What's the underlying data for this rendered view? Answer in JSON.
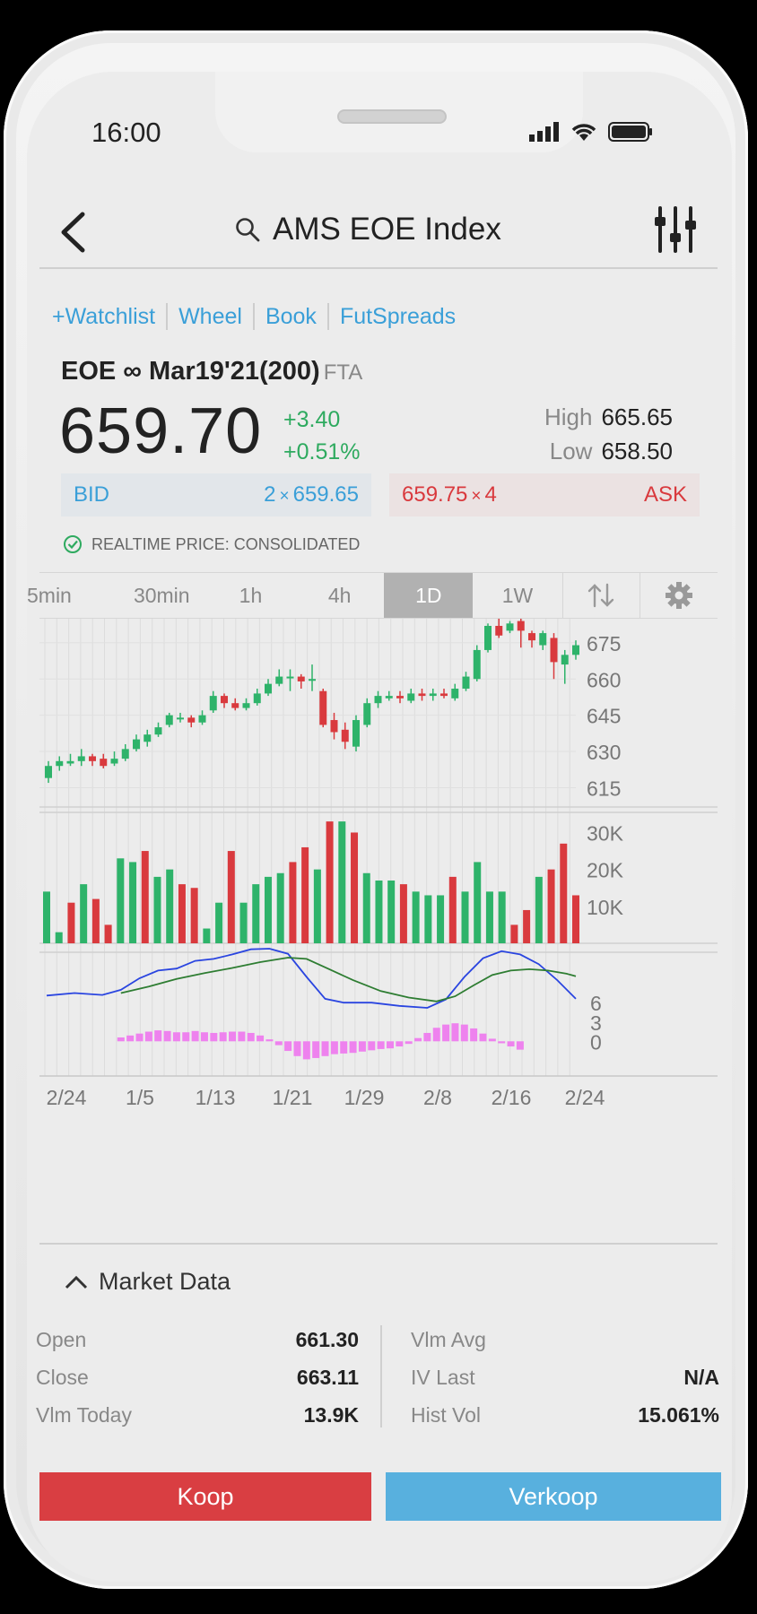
{
  "status_bar": {
    "time": "16:00"
  },
  "header": {
    "title": "AMS EOE Index"
  },
  "links": [
    "+Watchlist",
    "Wheel",
    "Book",
    "FutSpreads"
  ],
  "quote": {
    "contract": "EOE ∞ Mar19'21(200)",
    "exchange": "FTA",
    "price": "659.70",
    "change": "+3.40",
    "change_pct": "+0.51%",
    "high_label": "High",
    "high": "665.65",
    "low_label": "Low",
    "low": "658.50",
    "bid_label": "BID",
    "bid_size": "2",
    "bid_x": "×",
    "bid_price": "659.65",
    "ask_price": "659.75",
    "ask_x": "×",
    "ask_size": "4",
    "ask_label": "ASK",
    "realtime": "REALTIME PRICE: CONSOLIDATED"
  },
  "intervals": {
    "items": [
      "5min",
      "30min",
      "1h",
      "4h",
      "1D",
      "1W"
    ],
    "active": "1D"
  },
  "colors": {
    "up": "#2eb36a",
    "down": "#d93a3e",
    "macd": "#2a45e0",
    "signal": "#2e7d32",
    "hist": "#ee82ee"
  },
  "chart_data": {
    "type": "candlestick",
    "price_ticks": [
      "675",
      "660",
      "645",
      "630",
      "615"
    ],
    "price_range": [
      607,
      682
    ],
    "volume_ticks": [
      "30K",
      "20K",
      "10K"
    ],
    "volume_range": [
      0,
      34000
    ],
    "macd_ticks": [
      "6",
      "3",
      "0"
    ],
    "macd_range": [
      -4,
      13
    ],
    "x_labels": [
      "2/24",
      "1/5",
      "1/13",
      "1/21",
      "1/29",
      "2/8",
      "2/16",
      "2/24"
    ],
    "candles": [
      [
        619,
        624,
        626,
        617
      ],
      [
        624,
        626,
        628,
        622
      ],
      [
        625,
        626,
        629,
        624
      ],
      [
        626,
        628,
        631,
        624
      ],
      [
        628,
        626,
        629,
        624
      ],
      [
        627,
        624,
        629,
        623
      ],
      [
        625,
        627,
        630,
        624
      ],
      [
        627,
        631,
        633,
        626
      ],
      [
        631,
        635,
        637,
        630
      ],
      [
        634,
        637,
        639,
        632
      ],
      [
        637,
        640,
        642,
        636
      ],
      [
        641,
        645,
        646,
        640
      ],
      [
        644,
        644,
        646,
        642
      ],
      [
        644,
        642,
        645,
        640
      ],
      [
        642,
        645,
        647,
        641
      ],
      [
        647,
        653,
        655,
        646
      ],
      [
        653,
        650,
        654,
        648
      ],
      [
        650,
        648,
        652,
        647
      ],
      [
        648,
        650,
        652,
        647
      ],
      [
        650,
        654,
        656,
        649
      ],
      [
        654,
        658,
        660,
        653
      ],
      [
        658,
        661,
        664,
        657
      ],
      [
        661,
        661,
        664,
        655
      ],
      [
        661,
        659,
        662,
        656
      ],
      [
        660,
        660,
        666,
        655
      ],
      [
        655,
        641,
        656,
        640
      ],
      [
        643,
        638,
        646,
        635
      ],
      [
        639,
        634,
        642,
        631
      ],
      [
        632,
        643,
        645,
        630
      ],
      [
        641,
        650,
        652,
        640
      ],
      [
        650,
        653,
        655,
        648
      ],
      [
        652,
        653,
        655,
        651
      ],
      [
        653,
        652,
        655,
        650
      ],
      [
        651,
        654,
        656,
        650
      ],
      [
        654,
        653,
        656,
        651
      ],
      [
        653,
        654,
        656,
        651
      ],
      [
        654,
        653,
        656,
        652
      ],
      [
        652,
        656,
        658,
        651
      ],
      [
        656,
        661,
        663,
        655
      ],
      [
        660,
        672,
        674,
        659
      ],
      [
        672,
        682,
        683,
        671
      ],
      [
        682,
        678,
        686,
        677
      ],
      [
        680,
        683,
        684,
        679
      ],
      [
        684,
        680,
        685,
        673
      ],
      [
        679,
        676,
        680,
        673
      ],
      [
        674,
        679,
        680,
        672
      ],
      [
        677,
        667,
        679,
        660
      ],
      [
        666,
        670,
        672,
        658
      ],
      [
        670,
        674,
        676,
        668
      ]
    ],
    "volumes": [
      [
        14000,
        1
      ],
      [
        3000,
        1
      ],
      [
        11000,
        0
      ],
      [
        16000,
        1
      ],
      [
        12000,
        0
      ],
      [
        5000,
        0
      ],
      [
        23000,
        1
      ],
      [
        22000,
        1
      ],
      [
        25000,
        0
      ],
      [
        18000,
        1
      ],
      [
        20000,
        1
      ],
      [
        16000,
        0
      ],
      [
        15000,
        0
      ],
      [
        4000,
        1
      ],
      [
        11000,
        1
      ],
      [
        25000,
        0
      ],
      [
        11000,
        1
      ],
      [
        16000,
        1
      ],
      [
        18000,
        1
      ],
      [
        19000,
        1
      ],
      [
        22000,
        0
      ],
      [
        26000,
        0
      ],
      [
        20000,
        1
      ],
      [
        33000,
        0
      ],
      [
        33000,
        1
      ],
      [
        30000,
        0
      ],
      [
        19000,
        1
      ],
      [
        17000,
        1
      ],
      [
        17000,
        1
      ],
      [
        16000,
        0
      ],
      [
        14000,
        1
      ],
      [
        13000,
        1
      ],
      [
        13000,
        1
      ],
      [
        18000,
        0
      ],
      [
        14000,
        1
      ],
      [
        22000,
        1
      ],
      [
        14000,
        1
      ],
      [
        14000,
        1
      ],
      [
        5000,
        0
      ],
      [
        9000,
        0
      ],
      [
        18000,
        1
      ],
      [
        20000,
        0
      ],
      [
        27000,
        0
      ],
      [
        13000,
        0
      ]
    ],
    "macd": [
      [
        0,
        7.1
      ],
      [
        3,
        7.5
      ],
      [
        6,
        7.2
      ],
      [
        8,
        8.0
      ],
      [
        10,
        9.8
      ],
      [
        12,
        11.0
      ],
      [
        14,
        11.3
      ],
      [
        16,
        12.5
      ],
      [
        18,
        12.8
      ],
      [
        20,
        13.5
      ],
      [
        22,
        14.3
      ],
      [
        24,
        14.4
      ],
      [
        26,
        13.6
      ],
      [
        28,
        10.0
      ],
      [
        30,
        6.6
      ],
      [
        32,
        6.0
      ],
      [
        35,
        6.0
      ],
      [
        38,
        5.5
      ],
      [
        41,
        5.2
      ],
      [
        43,
        6.5
      ],
      [
        45,
        10.0
      ],
      [
        47,
        12.9
      ],
      [
        49,
        14.0
      ],
      [
        51,
        13.5
      ],
      [
        53,
        12.0
      ],
      [
        55,
        9.5
      ],
      [
        57,
        6.6
      ]
    ],
    "signal": [
      [
        8,
        7.5
      ],
      [
        11,
        8.5
      ],
      [
        14,
        9.7
      ],
      [
        17,
        10.6
      ],
      [
        20,
        11.4
      ],
      [
        23,
        12.3
      ],
      [
        26,
        13.0
      ],
      [
        28,
        12.8
      ],
      [
        30,
        11.5
      ],
      [
        33,
        9.5
      ],
      [
        36,
        7.8
      ],
      [
        39,
        6.8
      ],
      [
        42,
        6.2
      ],
      [
        44,
        7.0
      ],
      [
        46,
        8.7
      ],
      [
        48,
        10.3
      ],
      [
        50,
        11.0
      ],
      [
        52,
        11.2
      ],
      [
        54,
        11.0
      ],
      [
        56,
        10.5
      ],
      [
        57,
        10.1
      ]
    ],
    "histogram": [
      [
        8,
        0.6
      ],
      [
        9,
        0.9
      ],
      [
        10,
        1.2
      ],
      [
        11,
        1.5
      ],
      [
        12,
        1.7
      ],
      [
        13,
        1.6
      ],
      [
        14,
        1.4
      ],
      [
        15,
        1.4
      ],
      [
        16,
        1.6
      ],
      [
        17,
        1.4
      ],
      [
        18,
        1.3
      ],
      [
        19,
        1.4
      ],
      [
        20,
        1.5
      ],
      [
        21,
        1.5
      ],
      [
        22,
        1.3
      ],
      [
        23,
        0.9
      ],
      [
        24,
        0.3
      ],
      [
        25,
        -0.6
      ],
      [
        26,
        -1.5
      ],
      [
        27,
        -2.3
      ],
      [
        28,
        -2.8
      ],
      [
        29,
        -2.6
      ],
      [
        30,
        -2.3
      ],
      [
        31,
        -2.0
      ],
      [
        32,
        -1.9
      ],
      [
        33,
        -1.8
      ],
      [
        34,
        -1.6
      ],
      [
        35,
        -1.4
      ],
      [
        36,
        -1.2
      ],
      [
        37,
        -1.1
      ],
      [
        38,
        -0.8
      ],
      [
        39,
        -0.4
      ],
      [
        40,
        0.5
      ],
      [
        41,
        1.3
      ],
      [
        42,
        2.1
      ],
      [
        43,
        2.6
      ],
      [
        44,
        2.8
      ],
      [
        45,
        2.6
      ],
      [
        46,
        2.0
      ],
      [
        47,
        1.2
      ],
      [
        48,
        0.4
      ],
      [
        49,
        -0.3
      ],
      [
        50,
        -0.8
      ],
      [
        51,
        -1.3
      ]
    ]
  },
  "market_data": {
    "title": "Market Data",
    "left": [
      {
        "label": "Open",
        "value": "661.30"
      },
      {
        "label": "Close",
        "value": "663.11"
      },
      {
        "label": "Vlm Today",
        "value": "13.9K"
      }
    ],
    "right": [
      {
        "label": "Vlm Avg",
        "value": ""
      },
      {
        "label": "IV Last",
        "value": "N/A"
      },
      {
        "label": "Hist Vol",
        "value": "15.061%"
      }
    ]
  },
  "actions": {
    "buy": "Koop",
    "sell": "Verkoop"
  }
}
